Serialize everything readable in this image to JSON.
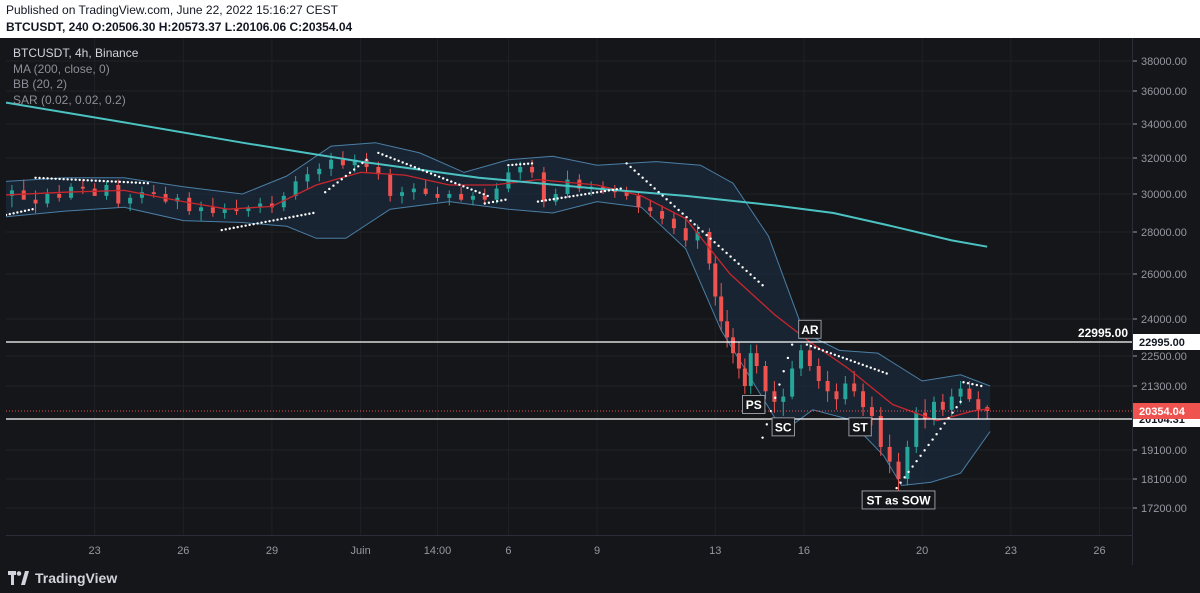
{
  "header": {
    "published": "Published on TradingView.com, June 22, 2022 15:16:27 CEST",
    "ohlc": "BTCUSDT, 240  O:20506.30  H:20573.37  L:20106.06  C:20354.04"
  },
  "legend": {
    "symbol": "BTCUSDT, 4h, Binance",
    "ma": "MA (200, close, 0)",
    "bb": "BB (20, 2)",
    "sar": "SAR (0.02, 0.02, 0.2)"
  },
  "footer": {
    "brand": "TradingView"
  },
  "colors": {
    "background": "#151619",
    "up": "#26a69a",
    "down": "#ef5350",
    "ma": "#4cc3c3",
    "bb_mid": "#c8262c",
    "bb_band": "#4a7fa6",
    "sar": "#ffffff",
    "price_line": "#ef5350"
  },
  "chart_data": {
    "type": "candlestick",
    "ylim": [
      16700,
      39000
    ],
    "y_ticks": [
      {
        "value": 38000,
        "label": "38000.00"
      },
      {
        "value": 36000,
        "label": "36000.00"
      },
      {
        "value": 34000,
        "label": "34000.00"
      },
      {
        "value": 32000,
        "label": "32000.00"
      },
      {
        "value": 30000,
        "label": "30000.00"
      },
      {
        "value": 28000,
        "label": "28000.00"
      },
      {
        "value": 26000,
        "label": "26000.00"
      },
      {
        "value": 24000,
        "label": "24000.00"
      },
      {
        "value": 22500,
        "label": "22500.00"
      },
      {
        "value": 21300,
        "label": "21300.00"
      },
      {
        "value": 19100,
        "label": "19100.00"
      },
      {
        "value": 18100,
        "label": "18100.00"
      },
      {
        "value": 17200,
        "label": "17200.00"
      }
    ],
    "x_ticks": [
      {
        "x": 23,
        "label": "23"
      },
      {
        "x": 26,
        "label": "26"
      },
      {
        "x": 29,
        "label": "29"
      },
      {
        "x": 32,
        "label": "Juin"
      },
      {
        "x": 34.6,
        "label": "14:00"
      },
      {
        "x": 37,
        "label": "6"
      },
      {
        "x": 40,
        "label": "9"
      },
      {
        "x": 44,
        "label": "13"
      },
      {
        "x": 47,
        "label": "16"
      },
      {
        "x": 51,
        "label": "20"
      },
      {
        "x": 54,
        "label": "23"
      },
      {
        "x": 57,
        "label": "26"
      }
    ],
    "xlim": [
      20.0,
      58.1
    ],
    "horizontal_lines": [
      {
        "name": "resistance",
        "value": 22995.0,
        "label": "22995.00",
        "label_above": "22995.00"
      },
      {
        "name": "support",
        "value": 20104.31,
        "label": "20104.31"
      }
    ],
    "last_price": {
      "value": 20354.04,
      "label": "20354.04"
    },
    "annotations": [
      {
        "text": "AR",
        "x": 47.2,
        "y": 23550
      },
      {
        "text": "PS",
        "x": 45.3,
        "y": 20600
      },
      {
        "text": "SC",
        "x": 46.3,
        "y": 19850
      },
      {
        "text": "ST",
        "x": 48.9,
        "y": 19850
      },
      {
        "text": "ST as SOW",
        "x": 50.2,
        "y": 17450
      }
    ],
    "ma200": [
      {
        "x": 20.0,
        "y": 35300
      },
      {
        "x": 24,
        "y": 34100
      },
      {
        "x": 28,
        "y": 32900
      },
      {
        "x": 32,
        "y": 31800
      },
      {
        "x": 36,
        "y": 30900
      },
      {
        "x": 40,
        "y": 30300
      },
      {
        "x": 43,
        "y": 29900
      },
      {
        "x": 46,
        "y": 29400
      },
      {
        "x": 48,
        "y": 29000
      },
      {
        "x": 50,
        "y": 28300
      },
      {
        "x": 52,
        "y": 27600
      },
      {
        "x": 53.2,
        "y": 27300
      }
    ],
    "bb_mid": [
      {
        "x": 20.0,
        "y": 29950
      },
      {
        "x": 22,
        "y": 30100
      },
      {
        "x": 24,
        "y": 30200
      },
      {
        "x": 26,
        "y": 29600
      },
      {
        "x": 27.5,
        "y": 29200
      },
      {
        "x": 29,
        "y": 29350
      },
      {
        "x": 30.5,
        "y": 30500
      },
      {
        "x": 32,
        "y": 31200
      },
      {
        "x": 33.5,
        "y": 31050
      },
      {
        "x": 35,
        "y": 30500
      },
      {
        "x": 36.5,
        "y": 30500
      },
      {
        "x": 38,
        "y": 30800
      },
      {
        "x": 40,
        "y": 30500
      },
      {
        "x": 41.5,
        "y": 29900
      },
      {
        "x": 43,
        "y": 28700
      },
      {
        "x": 44.5,
        "y": 26000
      },
      {
        "x": 46,
        "y": 24200
      },
      {
        "x": 47.2,
        "y": 23000
      },
      {
        "x": 48.5,
        "y": 22000
      },
      {
        "x": 50,
        "y": 20600
      },
      {
        "x": 51.5,
        "y": 20050
      },
      {
        "x": 52.7,
        "y": 20350
      },
      {
        "x": 53.3,
        "y": 20450
      }
    ],
    "bb_upper": [
      {
        "x": 20.0,
        "y": 30700
      },
      {
        "x": 22,
        "y": 30900
      },
      {
        "x": 24,
        "y": 30900
      },
      {
        "x": 26,
        "y": 30400
      },
      {
        "x": 28,
        "y": 30000
      },
      {
        "x": 29.5,
        "y": 31000
      },
      {
        "x": 31,
        "y": 32700
      },
      {
        "x": 32.5,
        "y": 32900
      },
      {
        "x": 34,
        "y": 32300
      },
      {
        "x": 35.5,
        "y": 31200
      },
      {
        "x": 37,
        "y": 31900
      },
      {
        "x": 38.5,
        "y": 32100
      },
      {
        "x": 40,
        "y": 31600
      },
      {
        "x": 42,
        "y": 31800
      },
      {
        "x": 43.5,
        "y": 31600
      },
      {
        "x": 44.6,
        "y": 30600
      },
      {
        "x": 45.8,
        "y": 27800
      },
      {
        "x": 47,
        "y": 23400
      },
      {
        "x": 48.2,
        "y": 22700
      },
      {
        "x": 49.5,
        "y": 22600
      },
      {
        "x": 51,
        "y": 21500
      },
      {
        "x": 52.3,
        "y": 21750
      },
      {
        "x": 53.3,
        "y": 21300
      }
    ],
    "bb_lower": [
      {
        "x": 20.0,
        "y": 28800
      },
      {
        "x": 22,
        "y": 29100
      },
      {
        "x": 24,
        "y": 29300
      },
      {
        "x": 26,
        "y": 28600
      },
      {
        "x": 28,
        "y": 28500
      },
      {
        "x": 29.5,
        "y": 28300
      },
      {
        "x": 30.5,
        "y": 27700
      },
      {
        "x": 31.5,
        "y": 27700
      },
      {
        "x": 33,
        "y": 29200
      },
      {
        "x": 35,
        "y": 29600
      },
      {
        "x": 37,
        "y": 29200
      },
      {
        "x": 38.5,
        "y": 29000
      },
      {
        "x": 40,
        "y": 29600
      },
      {
        "x": 41.5,
        "y": 29300
      },
      {
        "x": 43,
        "y": 27200
      },
      {
        "x": 44.2,
        "y": 23500
      },
      {
        "x": 45.2,
        "y": 21600
      },
      {
        "x": 46.3,
        "y": 19700
      },
      {
        "x": 47.3,
        "y": 20400
      },
      {
        "x": 48.5,
        "y": 20100
      },
      {
        "x": 49.7,
        "y": 18900
      },
      {
        "x": 50.3,
        "y": 17900
      },
      {
        "x": 51.3,
        "y": 18000
      },
      {
        "x": 52.3,
        "y": 18300
      },
      {
        "x": 53.3,
        "y": 19700
      }
    ],
    "sar": [
      {
        "x": 20.0,
        "y": 28900,
        "x2": 20.9,
        "y2": 29200
      },
      {
        "x": 21.0,
        "y": 30900,
        "x2": 24.8,
        "y2": 30600
      },
      {
        "x": 27.3,
        "y": 28100,
        "x2": 30.4,
        "y2": 29000
      },
      {
        "x": 30.8,
        "y": 30100,
        "x2": 32.2,
        "y2": 31900
      },
      {
        "x": 32.6,
        "y": 32300,
        "x2": 36.3,
        "y2": 29900
      },
      {
        "x": 36.2,
        "y": 29500,
        "x2": 36.9,
        "y2": 29700
      },
      {
        "x": 37.0,
        "y": 31600,
        "x2": 37.8,
        "y2": 31700
      },
      {
        "x": 38.0,
        "y": 29600,
        "x2": 40.8,
        "y2": 30300
      },
      {
        "x": 41.0,
        "y": 31700,
        "x2": 45.6,
        "y2": 25500
      },
      {
        "x": 45.6,
        "y": 19500,
        "x2": 46.6,
        "y2": 22900
      },
      {
        "x": 47.1,
        "y": 22900,
        "x2": 49.8,
        "y2": 21800
      },
      {
        "x": 50.0,
        "y": 17650,
        "x2": 52.3,
        "y2": 20700
      },
      {
        "x": 52.4,
        "y": 21450,
        "x2": 53.0,
        "y2": 21300
      }
    ],
    "candles": [
      {
        "x": 20.2,
        "o": 29900,
        "h": 30500,
        "l": 29300,
        "c": 30200
      },
      {
        "x": 20.6,
        "o": 30200,
        "h": 30800,
        "l": 29800,
        "c": 29700
      },
      {
        "x": 21.0,
        "o": 29700,
        "h": 30200,
        "l": 29000,
        "c": 29500
      },
      {
        "x": 21.4,
        "o": 29500,
        "h": 30300,
        "l": 29300,
        "c": 30000
      },
      {
        "x": 21.8,
        "o": 30000,
        "h": 30500,
        "l": 29600,
        "c": 29800
      },
      {
        "x": 22.2,
        "o": 29800,
        "h": 30600,
        "l": 29700,
        "c": 30400
      },
      {
        "x": 22.6,
        "o": 30400,
        "h": 30800,
        "l": 30000,
        "c": 30300
      },
      {
        "x": 23.0,
        "o": 30300,
        "h": 30600,
        "l": 29900,
        "c": 29900
      },
      {
        "x": 23.4,
        "o": 29900,
        "h": 30700,
        "l": 29700,
        "c": 30500
      },
      {
        "x": 23.8,
        "o": 30500,
        "h": 30800,
        "l": 29300,
        "c": 29500
      },
      {
        "x": 24.2,
        "o": 29500,
        "h": 30000,
        "l": 29100,
        "c": 29800
      },
      {
        "x": 24.6,
        "o": 29800,
        "h": 30400,
        "l": 29500,
        "c": 30100
      },
      {
        "x": 25.0,
        "o": 30100,
        "h": 30500,
        "l": 29800,
        "c": 30000
      },
      {
        "x": 25.4,
        "o": 30000,
        "h": 30400,
        "l": 29500,
        "c": 29600
      },
      {
        "x": 25.8,
        "o": 29600,
        "h": 30000,
        "l": 29200,
        "c": 29800
      },
      {
        "x": 26.2,
        "o": 29800,
        "h": 30100,
        "l": 28900,
        "c": 29100
      },
      {
        "x": 26.6,
        "o": 29100,
        "h": 29600,
        "l": 28600,
        "c": 29300
      },
      {
        "x": 27.0,
        "o": 29300,
        "h": 29800,
        "l": 28800,
        "c": 29000
      },
      {
        "x": 27.4,
        "o": 29000,
        "h": 29500,
        "l": 28700,
        "c": 29200
      },
      {
        "x": 27.8,
        "o": 29200,
        "h": 29700,
        "l": 28900,
        "c": 29100
      },
      {
        "x": 28.2,
        "o": 29100,
        "h": 29400,
        "l": 28800,
        "c": 29300
      },
      {
        "x": 28.6,
        "o": 29300,
        "h": 29800,
        "l": 29000,
        "c": 29500
      },
      {
        "x": 29.0,
        "o": 29500,
        "h": 29900,
        "l": 29000,
        "c": 29300
      },
      {
        "x": 29.4,
        "o": 29300,
        "h": 30100,
        "l": 29100,
        "c": 29900
      },
      {
        "x": 29.8,
        "o": 29900,
        "h": 31000,
        "l": 29700,
        "c": 30700
      },
      {
        "x": 30.2,
        "o": 30700,
        "h": 31500,
        "l": 30300,
        "c": 31100
      },
      {
        "x": 30.6,
        "o": 31100,
        "h": 31700,
        "l": 30700,
        "c": 31400
      },
      {
        "x": 31.0,
        "o": 31400,
        "h": 32300,
        "l": 31000,
        "c": 31900
      },
      {
        "x": 31.4,
        "o": 31900,
        "h": 32400,
        "l": 31400,
        "c": 31600
      },
      {
        "x": 31.8,
        "o": 31600,
        "h": 32200,
        "l": 31200,
        "c": 31900
      },
      {
        "x": 32.2,
        "o": 31900,
        "h": 32300,
        "l": 31200,
        "c": 31500
      },
      {
        "x": 32.6,
        "o": 31500,
        "h": 31800,
        "l": 30800,
        "c": 31100
      },
      {
        "x": 33.0,
        "o": 31100,
        "h": 31400,
        "l": 29600,
        "c": 29900
      },
      {
        "x": 33.4,
        "o": 29900,
        "h": 30400,
        "l": 29500,
        "c": 30100
      },
      {
        "x": 33.8,
        "o": 30100,
        "h": 30600,
        "l": 29700,
        "c": 30300
      },
      {
        "x": 34.2,
        "o": 30300,
        "h": 30800,
        "l": 29900,
        "c": 30000
      },
      {
        "x": 34.6,
        "o": 30000,
        "h": 30400,
        "l": 29600,
        "c": 29800
      },
      {
        "x": 35.0,
        "o": 29800,
        "h": 30200,
        "l": 29400,
        "c": 30000
      },
      {
        "x": 35.4,
        "o": 30000,
        "h": 30400,
        "l": 29600,
        "c": 29700
      },
      {
        "x": 35.8,
        "o": 29700,
        "h": 30100,
        "l": 29400,
        "c": 29900
      },
      {
        "x": 36.2,
        "o": 29900,
        "h": 30300,
        "l": 29500,
        "c": 29700
      },
      {
        "x": 36.6,
        "o": 29700,
        "h": 30600,
        "l": 29500,
        "c": 30300
      },
      {
        "x": 37.0,
        "o": 30300,
        "h": 31500,
        "l": 30100,
        "c": 31200
      },
      {
        "x": 37.4,
        "o": 31200,
        "h": 31800,
        "l": 30800,
        "c": 31500
      },
      {
        "x": 37.8,
        "o": 31500,
        "h": 31900,
        "l": 30900,
        "c": 31200
      },
      {
        "x": 38.2,
        "o": 31200,
        "h": 31500,
        "l": 29300,
        "c": 29600
      },
      {
        "x": 38.6,
        "o": 29600,
        "h": 30300,
        "l": 29400,
        "c": 30000
      },
      {
        "x": 39.0,
        "o": 30000,
        "h": 31300,
        "l": 29800,
        "c": 30800
      },
      {
        "x": 39.4,
        "o": 30800,
        "h": 31100,
        "l": 30100,
        "c": 30300
      },
      {
        "x": 39.8,
        "o": 30300,
        "h": 30700,
        "l": 29900,
        "c": 30400
      },
      {
        "x": 40.2,
        "o": 30400,
        "h": 30700,
        "l": 30000,
        "c": 30200
      },
      {
        "x": 40.6,
        "o": 30200,
        "h": 30500,
        "l": 29800,
        "c": 30100
      },
      {
        "x": 41.0,
        "o": 30100,
        "h": 30400,
        "l": 29700,
        "c": 29900
      },
      {
        "x": 41.4,
        "o": 29900,
        "h": 30100,
        "l": 29000,
        "c": 29300
      },
      {
        "x": 41.8,
        "o": 29300,
        "h": 29700,
        "l": 28800,
        "c": 29100
      },
      {
        "x": 42.2,
        "o": 29100,
        "h": 29400,
        "l": 28400,
        "c": 28700
      },
      {
        "x": 42.6,
        "o": 28700,
        "h": 29000,
        "l": 27900,
        "c": 28200
      },
      {
        "x": 43.0,
        "o": 28200,
        "h": 28800,
        "l": 27300,
        "c": 27600
      },
      {
        "x": 43.4,
        "o": 27600,
        "h": 28400,
        "l": 27200,
        "c": 28000
      },
      {
        "x": 43.8,
        "o": 28000,
        "h": 28200,
        "l": 26200,
        "c": 26500
      },
      {
        "x": 44.0,
        "o": 26500,
        "h": 26900,
        "l": 24600,
        "c": 25000
      },
      {
        "x": 44.2,
        "o": 25000,
        "h": 25600,
        "l": 23500,
        "c": 23900
      },
      {
        "x": 44.4,
        "o": 23900,
        "h": 24400,
        "l": 22800,
        "c": 23200
      },
      {
        "x": 44.6,
        "o": 23200,
        "h": 23600,
        "l": 22200,
        "c": 22600
      },
      {
        "x": 44.8,
        "o": 22600,
        "h": 23000,
        "l": 21600,
        "c": 22000
      },
      {
        "x": 45.0,
        "o": 22000,
        "h": 22400,
        "l": 21000,
        "c": 21300
      },
      {
        "x": 45.2,
        "o": 21300,
        "h": 22900,
        "l": 21000,
        "c": 22600
      },
      {
        "x": 45.4,
        "o": 22600,
        "h": 22900,
        "l": 21800,
        "c": 22100
      },
      {
        "x": 45.7,
        "o": 22100,
        "h": 22300,
        "l": 20800,
        "c": 21100
      },
      {
        "x": 46.0,
        "o": 21100,
        "h": 21500,
        "l": 20300,
        "c": 20700
      },
      {
        "x": 46.3,
        "o": 20700,
        "h": 21200,
        "l": 20200,
        "c": 20900
      },
      {
        "x": 46.6,
        "o": 20900,
        "h": 22300,
        "l": 20800,
        "c": 22000
      },
      {
        "x": 46.9,
        "o": 22000,
        "h": 22900,
        "l": 21700,
        "c": 22700
      },
      {
        "x": 47.2,
        "o": 22700,
        "h": 22950,
        "l": 21900,
        "c": 22100
      },
      {
        "x": 47.5,
        "o": 22100,
        "h": 22400,
        "l": 21200,
        "c": 21500
      },
      {
        "x": 47.8,
        "o": 21500,
        "h": 21900,
        "l": 20700,
        "c": 21100
      },
      {
        "x": 48.1,
        "o": 21100,
        "h": 21400,
        "l": 20400,
        "c": 20800
      },
      {
        "x": 48.4,
        "o": 20800,
        "h": 21700,
        "l": 20600,
        "c": 21400
      },
      {
        "x": 48.7,
        "o": 21400,
        "h": 21900,
        "l": 20900,
        "c": 21100
      },
      {
        "x": 49.0,
        "o": 21100,
        "h": 21400,
        "l": 20200,
        "c": 20500
      },
      {
        "x": 49.3,
        "o": 20500,
        "h": 20900,
        "l": 19900,
        "c": 20200
      },
      {
        "x": 49.6,
        "o": 20200,
        "h": 20500,
        "l": 18900,
        "c": 19200
      },
      {
        "x": 49.9,
        "o": 19200,
        "h": 19600,
        "l": 18300,
        "c": 18700
      },
      {
        "x": 50.2,
        "o": 18700,
        "h": 19000,
        "l": 17700,
        "c": 18100
      },
      {
        "x": 50.5,
        "o": 18100,
        "h": 19400,
        "l": 17900,
        "c": 19200
      },
      {
        "x": 50.8,
        "o": 19200,
        "h": 20500,
        "l": 19000,
        "c": 20300
      },
      {
        "x": 51.1,
        "o": 20300,
        "h": 20800,
        "l": 19800,
        "c": 20100
      },
      {
        "x": 51.4,
        "o": 20100,
        "h": 20900,
        "l": 19900,
        "c": 20700
      },
      {
        "x": 51.7,
        "o": 20700,
        "h": 21000,
        "l": 20200,
        "c": 20400
      },
      {
        "x": 52.0,
        "o": 20400,
        "h": 21200,
        "l": 20200,
        "c": 20900
      },
      {
        "x": 52.3,
        "o": 20900,
        "h": 21500,
        "l": 20600,
        "c": 21200
      },
      {
        "x": 52.6,
        "o": 21200,
        "h": 21500,
        "l": 20700,
        "c": 20800
      },
      {
        "x": 52.9,
        "o": 20800,
        "h": 21100,
        "l": 20100,
        "c": 20400
      },
      {
        "x": 53.2,
        "o": 20500,
        "h": 20573,
        "l": 20106,
        "c": 20354
      }
    ]
  }
}
